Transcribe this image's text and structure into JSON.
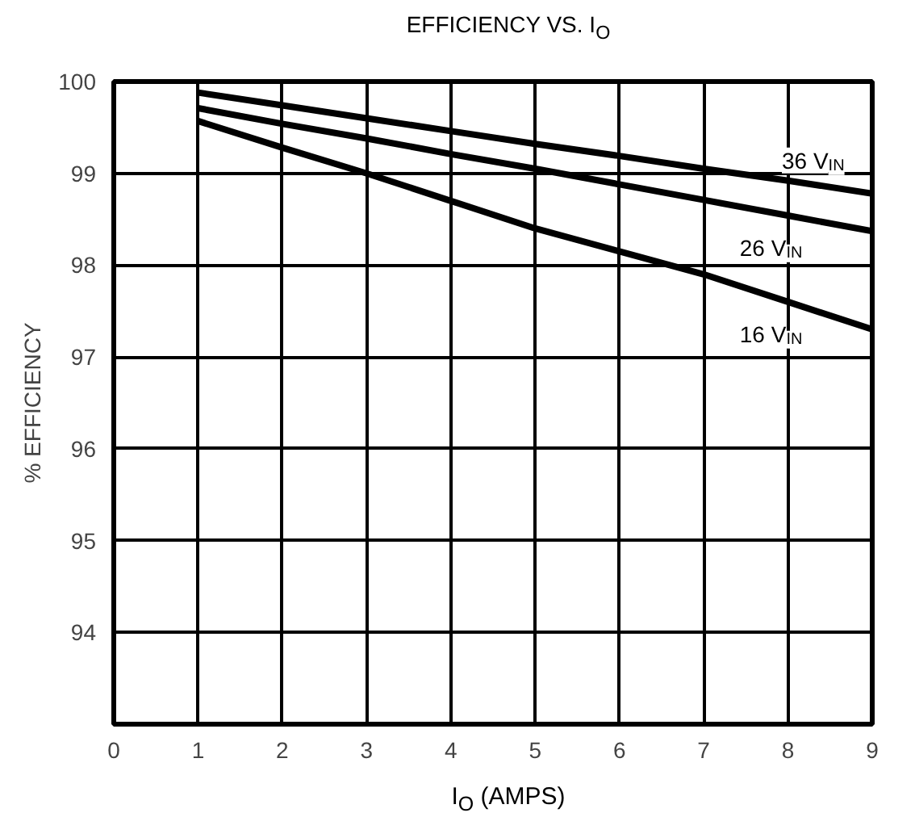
{
  "chart_data": {
    "type": "line",
    "title": "EFFICIENCY VS. I$_{O}$",
    "xlabel": "I$_{O}$ (AMPS)",
    "ylabel": "% EFFICIENCY",
    "x": [
      1,
      2,
      3,
      4,
      5,
      6,
      7,
      8,
      9
    ],
    "series": [
      {
        "name": "36 V$_{IN}$",
        "color": "#000000",
        "values": [
          99.88,
          99.74,
          99.6,
          99.46,
          99.32,
          99.19,
          99.05,
          98.92,
          98.78
        ]
      },
      {
        "name": "26 V$_{IN}$",
        "color": "#000000",
        "values": [
          99.71,
          99.54,
          99.38,
          99.21,
          99.05,
          98.88,
          98.71,
          98.54,
          98.37
        ]
      },
      {
        "name": "16 V$_{IN}$",
        "color": "#000000",
        "values": [
          99.57,
          99.28,
          99.0,
          98.7,
          98.4,
          98.15,
          97.9,
          97.6,
          97.3
        ]
      }
    ],
    "xlim": [
      0,
      9
    ],
    "ylim": [
      93,
      100
    ],
    "xticks": [
      0,
      1,
      2,
      3,
      4,
      5,
      6,
      7,
      8,
      9
    ],
    "yticks": [
      94,
      95,
      96,
      97,
      98,
      99,
      100
    ],
    "grid": true,
    "legend": false,
    "line_style": "solid",
    "marker": "none"
  }
}
